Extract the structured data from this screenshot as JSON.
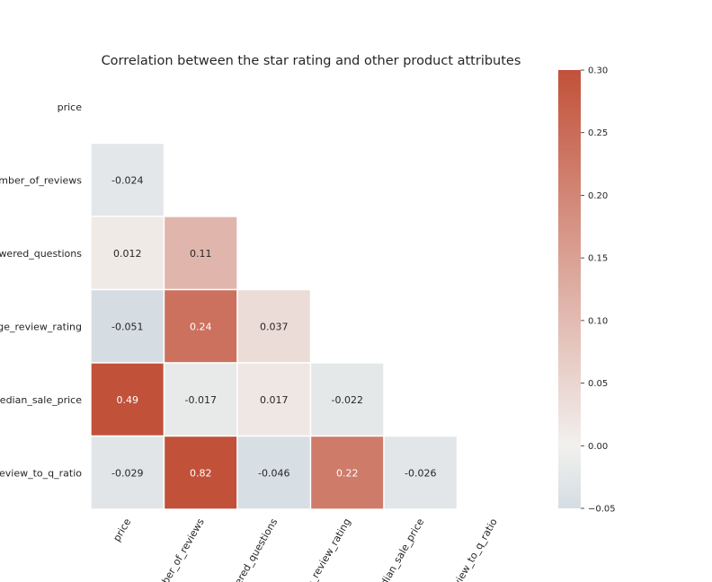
{
  "chart_data": {
    "type": "heatmap",
    "title": "Correlation between the star rating and other product attributes",
    "variables": [
      "price",
      "number_of_reviews",
      "answered_questions",
      "average_review_rating",
      "median_sale_price",
      "review_to_q_ratio"
    ],
    "tick_labels": {
      "y": [
        "price",
        "mber_of_reviews",
        "wered_questions",
        "ge_review_rating",
        "edian_sale_price",
        "review_to_q_ratio"
      ],
      "x": [
        "price",
        "mber_of_reviews",
        "ered_questions",
        "e_review_rating",
        "dian_sale_price",
        "view_to_q_ratio"
      ]
    },
    "mask": "upper-triangle-including-diagonal",
    "cells": [
      {
        "row": 1,
        "col": 0,
        "value": -0.024,
        "label": "-0.024"
      },
      {
        "row": 2,
        "col": 0,
        "value": 0.012,
        "label": "0.012"
      },
      {
        "row": 2,
        "col": 1,
        "value": 0.11,
        "label": "0.11"
      },
      {
        "row": 3,
        "col": 0,
        "value": -0.051,
        "label": "-0.051"
      },
      {
        "row": 3,
        "col": 1,
        "value": 0.24,
        "label": "0.24"
      },
      {
        "row": 3,
        "col": 2,
        "value": 0.037,
        "label": "0.037"
      },
      {
        "row": 4,
        "col": 0,
        "value": 0.49,
        "label": "0.49"
      },
      {
        "row": 4,
        "col": 1,
        "value": -0.017,
        "label": "-0.017"
      },
      {
        "row": 4,
        "col": 2,
        "value": 0.017,
        "label": "0.017"
      },
      {
        "row": 4,
        "col": 3,
        "value": -0.022,
        "label": "-0.022"
      },
      {
        "row": 5,
        "col": 0,
        "value": -0.029,
        "label": "-0.029"
      },
      {
        "row": 5,
        "col": 1,
        "value": 0.82,
        "label": "0.82"
      },
      {
        "row": 5,
        "col": 2,
        "value": -0.046,
        "label": "-0.046"
      },
      {
        "row": 5,
        "col": 3,
        "value": 0.22,
        "label": "0.22"
      },
      {
        "row": 5,
        "col": 4,
        "value": -0.026,
        "label": "-0.026"
      }
    ],
    "colorbar": {
      "vmin": -0.05,
      "vmax": 0.3,
      "ticks": [
        0.3,
        0.25,
        0.2,
        0.15,
        0.1,
        0.05,
        0.0,
        -0.05
      ],
      "tick_labels": [
        "0.30",
        "0.25",
        "0.20",
        "0.15",
        "0.10",
        "0.05",
        "0.00",
        "−0.05"
      ],
      "colors": {
        "low": "#d5dde3",
        "mid": "#f2f0ee",
        "high": "#c2513a"
      }
    },
    "grid": false,
    "legend": "colorbar-right"
  }
}
